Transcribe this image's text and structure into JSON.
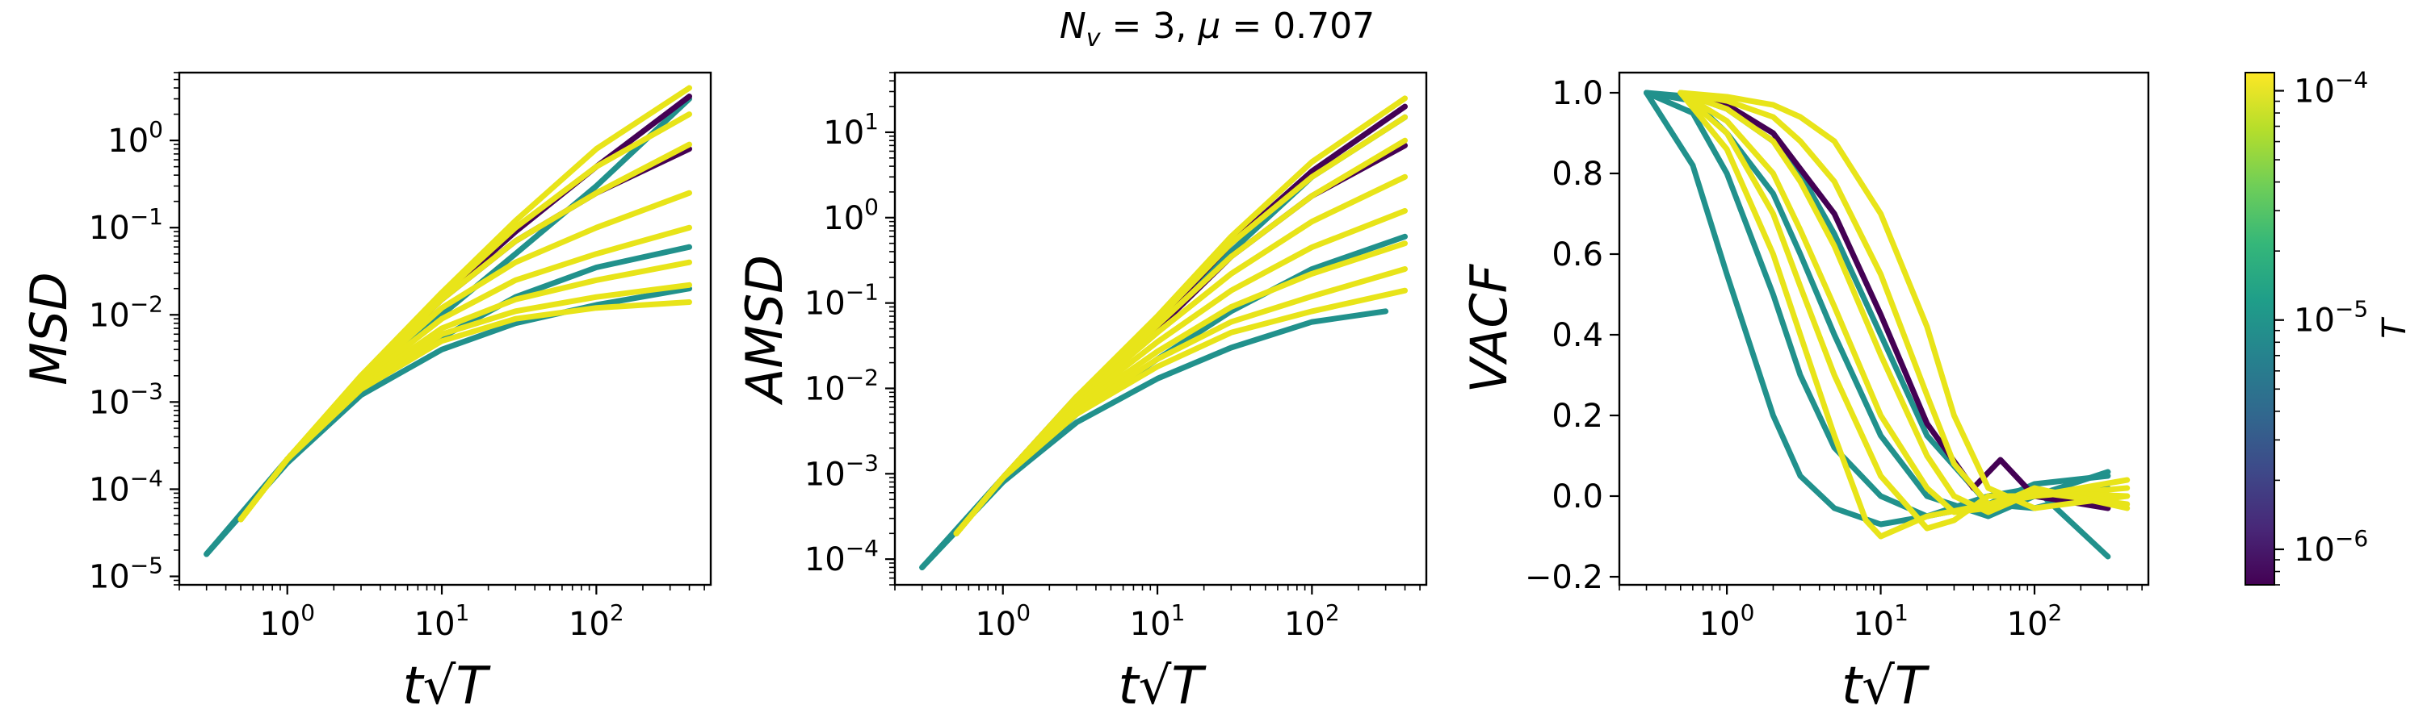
{
  "figure_title": "N_v = 3, μ = 0.707",
  "colorbar": {
    "label": "T",
    "colormap": "viridis",
    "range": [
      7e-07,
      0.00012
    ],
    "ticks": [
      {
        "value": 1e-06,
        "base": "10",
        "exp": "−6"
      },
      {
        "value": 1e-05,
        "base": "10",
        "exp": "−5"
      },
      {
        "value": 0.0001,
        "base": "10",
        "exp": "−4"
      }
    ],
    "colors": [
      "#440154",
      "#482878",
      "#3e4989",
      "#31688e",
      "#26828e",
      "#1f9e89",
      "#35b779",
      "#6ece58",
      "#b5de2b",
      "#fde725"
    ]
  },
  "chart_data": [
    {
      "type": "line",
      "name": "msd-panel",
      "ylabel": "MSD",
      "xlabel": "t√T",
      "xscale": "log",
      "yscale": "log",
      "xlim": [
        0.2,
        550
      ],
      "ylim": [
        8e-06,
        6
      ],
      "xticks": [
        {
          "value": 1,
          "base": "10",
          "exp": "0"
        },
        {
          "value": 10,
          "base": "10",
          "exp": "1"
        },
        {
          "value": 100,
          "base": "10",
          "exp": "2"
        }
      ],
      "yticks": [
        {
          "value": 1e-05,
          "base": "10",
          "exp": "−5"
        },
        {
          "value": 0.0001,
          "base": "10",
          "exp": "−4"
        },
        {
          "value": 0.001,
          "base": "10",
          "exp": "−3"
        },
        {
          "value": 0.01,
          "base": "10",
          "exp": "−2"
        },
        {
          "value": 0.1,
          "base": "10",
          "exp": "−1"
        },
        {
          "value": 1,
          "base": "10",
          "exp": "0"
        }
      ],
      "series": [
        {
          "T": 1e-05,
          "color": "#21918c",
          "x": [
            0.3,
            1,
            3,
            10,
            30,
            100,
            400
          ],
          "y": [
            1.8e-05,
            0.0002,
            0.0012,
            0.004,
            0.008,
            0.013,
            0.02
          ]
        },
        {
          "T": 1e-05,
          "color": "#21918c",
          "x": [
            0.3,
            1,
            3,
            10,
            30,
            100,
            400
          ],
          "y": [
            1.8e-05,
            0.00021,
            0.0014,
            0.0055,
            0.016,
            0.035,
            0.06
          ]
        },
        {
          "T": 1e-05,
          "color": "#21918c",
          "x": [
            0.3,
            1,
            3,
            10,
            30,
            100,
            400
          ],
          "y": [
            1.8e-05,
            0.00022,
            0.0017,
            0.01,
            0.05,
            0.3,
            3
          ]
        },
        {
          "T": 1e-06,
          "color": "#440154",
          "x": [
            0.5,
            1,
            3,
            10,
            30,
            100,
            400
          ],
          "y": [
            4.5e-05,
            0.00022,
            0.0019,
            0.016,
            0.09,
            0.5,
            3.2
          ]
        },
        {
          "T": 1e-06,
          "color": "#440154",
          "x": [
            0.5,
            1,
            3,
            10,
            30,
            100,
            400
          ],
          "y": [
            4.5e-05,
            0.00022,
            0.0019,
            0.015,
            0.07,
            0.25,
            0.8
          ]
        },
        {
          "T": 0.0001,
          "color": "#e8e419",
          "x": [
            0.5,
            1,
            3,
            10,
            30,
            100,
            400
          ],
          "y": [
            4.5e-05,
            0.00022,
            0.002,
            0.018,
            0.12,
            0.8,
            4
          ]
        },
        {
          "T": 0.0001,
          "color": "#e8e419",
          "x": [
            0.5,
            1,
            3,
            10,
            30,
            100,
            400
          ],
          "y": [
            4.5e-05,
            0.00022,
            0.002,
            0.017,
            0.1,
            0.5,
            2
          ]
        },
        {
          "T": 0.0001,
          "color": "#e8e419",
          "x": [
            0.5,
            1,
            3,
            10,
            30,
            100,
            400
          ],
          "y": [
            4.5e-05,
            0.00022,
            0.0019,
            0.015,
            0.07,
            0.25,
            0.9
          ]
        },
        {
          "T": 0.0001,
          "color": "#e8e419",
          "x": [
            0.5,
            1,
            3,
            10,
            30,
            100,
            400
          ],
          "y": [
            4.5e-05,
            0.00022,
            0.0018,
            0.012,
            0.04,
            0.1,
            0.25
          ]
        },
        {
          "T": 0.0001,
          "color": "#e8e419",
          "x": [
            0.5,
            1,
            3,
            10,
            30,
            100,
            400
          ],
          "y": [
            4.5e-05,
            0.00022,
            0.0017,
            0.009,
            0.025,
            0.05,
            0.1
          ]
        },
        {
          "T": 0.0001,
          "color": "#e8e419",
          "x": [
            0.5,
            1,
            3,
            10,
            30,
            100,
            400
          ],
          "y": [
            4.5e-05,
            0.00022,
            0.0016,
            0.007,
            0.015,
            0.025,
            0.04
          ]
        },
        {
          "T": 0.0001,
          "color": "#e8e419",
          "x": [
            0.5,
            1,
            3,
            10,
            30,
            100,
            400
          ],
          "y": [
            4.5e-05,
            0.00022,
            0.0015,
            0.006,
            0.011,
            0.016,
            0.022
          ]
        },
        {
          "T": 0.0001,
          "color": "#e8e419",
          "x": [
            0.5,
            1,
            3,
            10,
            30,
            100,
            400
          ],
          "y": [
            4.5e-05,
            0.00022,
            0.0014,
            0.005,
            0.009,
            0.012,
            0.014
          ]
        }
      ]
    },
    {
      "type": "line",
      "name": "amsd-panel",
      "ylabel": "AMSD",
      "xlabel": "t√T",
      "xscale": "log",
      "yscale": "log",
      "xlim": [
        0.2,
        550
      ],
      "ylim": [
        5e-05,
        50
      ],
      "xticks": [
        {
          "value": 1,
          "base": "10",
          "exp": "0"
        },
        {
          "value": 10,
          "base": "10",
          "exp": "1"
        },
        {
          "value": 100,
          "base": "10",
          "exp": "2"
        }
      ],
      "yticks": [
        {
          "value": 0.0001,
          "base": "10",
          "exp": "−4"
        },
        {
          "value": 0.001,
          "base": "10",
          "exp": "−3"
        },
        {
          "value": 0.01,
          "base": "10",
          "exp": "−2"
        },
        {
          "value": 0.1,
          "base": "10",
          "exp": "−1"
        },
        {
          "value": 1,
          "base": "10",
          "exp": "0"
        },
        {
          "value": 10,
          "base": "10",
          "exp": "1"
        }
      ],
      "series": [
        {
          "T": 1e-05,
          "color": "#21918c",
          "x": [
            0.3,
            1,
            3,
            10,
            30,
            100,
            300
          ],
          "y": [
            8e-05,
            0.0008,
            0.004,
            0.013,
            0.03,
            0.06,
            0.08
          ]
        },
        {
          "T": 1e-05,
          "color": "#21918c",
          "x": [
            0.3,
            1,
            3,
            10,
            30,
            100,
            400
          ],
          "y": [
            8e-05,
            0.0008,
            0.005,
            0.022,
            0.08,
            0.25,
            0.6
          ]
        },
        {
          "T": 1e-05,
          "color": "#21918c",
          "x": [
            0.3,
            1,
            3,
            10,
            30,
            100,
            400
          ],
          "y": [
            8e-05,
            0.0009,
            0.007,
            0.05,
            0.4,
            3,
            15
          ]
        },
        {
          "T": 1e-06,
          "color": "#440154",
          "x": [
            0.5,
            1,
            3,
            10,
            30,
            100,
            400
          ],
          "y": [
            0.0002,
            0.0009,
            0.008,
            0.06,
            0.5,
            3.5,
            20
          ]
        },
        {
          "T": 1e-06,
          "color": "#440154",
          "x": [
            0.5,
            1,
            3,
            10,
            30,
            100,
            400
          ],
          "y": [
            0.0002,
            0.0009,
            0.0075,
            0.05,
            0.35,
            1.8,
            7
          ]
        },
        {
          "T": 0.0001,
          "color": "#e8e419",
          "x": [
            0.5,
            1,
            3,
            10,
            30,
            100,
            400
          ],
          "y": [
            0.0002,
            0.0009,
            0.008,
            0.07,
            0.6,
            4.5,
            25
          ]
        },
        {
          "T": 0.0001,
          "color": "#e8e419",
          "x": [
            0.5,
            1,
            3,
            10,
            30,
            100,
            400
          ],
          "y": [
            0.0002,
            0.0009,
            0.008,
            0.065,
            0.5,
            3,
            15
          ]
        },
        {
          "T": 0.0001,
          "color": "#e8e419",
          "x": [
            0.5,
            1,
            3,
            10,
            30,
            100,
            400
          ],
          "y": [
            0.0002,
            0.0009,
            0.0075,
            0.055,
            0.35,
            1.8,
            8
          ]
        },
        {
          "T": 0.0001,
          "color": "#e8e419",
          "x": [
            0.5,
            1,
            3,
            10,
            30,
            100,
            400
          ],
          "y": [
            0.0002,
            0.0009,
            0.007,
            0.045,
            0.22,
            0.9,
            3
          ]
        },
        {
          "T": 0.0001,
          "color": "#e8e419",
          "x": [
            0.5,
            1,
            3,
            10,
            30,
            100,
            400
          ],
          "y": [
            0.0002,
            0.0009,
            0.0065,
            0.035,
            0.14,
            0.45,
            1.2
          ]
        },
        {
          "T": 0.0001,
          "color": "#e8e419",
          "x": [
            0.5,
            1,
            3,
            10,
            30,
            100,
            400
          ],
          "y": [
            0.0002,
            0.0009,
            0.006,
            0.027,
            0.09,
            0.22,
            0.5
          ]
        },
        {
          "T": 0.0001,
          "color": "#e8e419",
          "x": [
            0.5,
            1,
            3,
            10,
            30,
            100,
            400
          ],
          "y": [
            0.0002,
            0.0009,
            0.0055,
            0.022,
            0.06,
            0.12,
            0.25
          ]
        },
        {
          "T": 0.0001,
          "color": "#e8e419",
          "x": [
            0.5,
            1,
            3,
            10,
            30,
            100,
            400
          ],
          "y": [
            0.0002,
            0.0009,
            0.005,
            0.018,
            0.045,
            0.08,
            0.14
          ]
        }
      ]
    },
    {
      "type": "line",
      "name": "vacf-panel",
      "ylabel": "VACF",
      "xlabel": "t√T",
      "xscale": "log",
      "yscale": "linear",
      "xlim": [
        0.2,
        550
      ],
      "ylim": [
        -0.22,
        1.05
      ],
      "xticks": [
        {
          "value": 1,
          "base": "10",
          "exp": "0"
        },
        {
          "value": 10,
          "base": "10",
          "exp": "1"
        },
        {
          "value": 100,
          "base": "10",
          "exp": "2"
        }
      ],
      "yticks": [
        {
          "value": -0.2,
          "label": "−0.2"
        },
        {
          "value": 0.0,
          "label": "0.0"
        },
        {
          "value": 0.2,
          "label": "0.2"
        },
        {
          "value": 0.4,
          "label": "0.4"
        },
        {
          "value": 0.6,
          "label": "0.6"
        },
        {
          "value": 0.8,
          "label": "0.8"
        },
        {
          "value": 1.0,
          "label": "1.0"
        }
      ],
      "series": [
        {
          "T": 1e-05,
          "color": "#21918c",
          "x": [
            0.3,
            0.6,
            1,
            2,
            3,
            5,
            10,
            20,
            50,
            100,
            300
          ],
          "y": [
            1.0,
            0.82,
            0.55,
            0.2,
            0.05,
            -0.03,
            -0.07,
            -0.05,
            0.0,
            0.02,
            -0.15
          ]
        },
        {
          "T": 1e-05,
          "color": "#21918c",
          "x": [
            0.3,
            0.6,
            1,
            2,
            3,
            5,
            10,
            20,
            50,
            100,
            300
          ],
          "y": [
            1.0,
            0.95,
            0.8,
            0.5,
            0.3,
            0.12,
            0.0,
            -0.05,
            -0.02,
            0.03,
            0.05
          ]
        },
        {
          "T": 1e-05,
          "color": "#21918c",
          "x": [
            0.3,
            0.6,
            1,
            2,
            3,
            5,
            10,
            20,
            50,
            100,
            300
          ],
          "y": [
            1.0,
            0.98,
            0.9,
            0.75,
            0.6,
            0.4,
            0.15,
            0.0,
            -0.05,
            0.0,
            0.06
          ]
        },
        {
          "T": 1e-05,
          "color": "#21918c",
          "x": [
            0.3,
            0.6,
            1,
            2,
            3,
            5,
            10,
            20,
            50,
            100,
            300
          ],
          "y": [
            1.0,
            0.99,
            0.96,
            0.88,
            0.8,
            0.65,
            0.4,
            0.15,
            -0.02,
            -0.03,
            0.02
          ]
        },
        {
          "T": 1e-06,
          "color": "#440154",
          "x": [
            0.5,
            1,
            2,
            5,
            10,
            20,
            40,
            60,
            100,
            300
          ],
          "y": [
            1.0,
            0.97,
            0.9,
            0.7,
            0.45,
            0.18,
            0.02,
            0.09,
            0.0,
            -0.03
          ]
        },
        {
          "T": 0.0001,
          "color": "#e8e419",
          "x": [
            0.5,
            1,
            2,
            3,
            5,
            10,
            20,
            30,
            50,
            100,
            400
          ],
          "y": [
            1.0,
            0.98,
            0.94,
            0.88,
            0.78,
            0.55,
            0.25,
            0.08,
            -0.02,
            0.0,
            0.02
          ]
        },
        {
          "T": 0.0001,
          "color": "#e8e419",
          "x": [
            0.5,
            1,
            2,
            3,
            5,
            10,
            20,
            30,
            50,
            100,
            400
          ],
          "y": [
            1.0,
            0.96,
            0.88,
            0.78,
            0.62,
            0.35,
            0.1,
            0.0,
            -0.04,
            0.01,
            0.0
          ]
        },
        {
          "T": 0.0001,
          "color": "#e8e419",
          "x": [
            0.5,
            1,
            2,
            3,
            5,
            10,
            20,
            30,
            50,
            100,
            400
          ],
          "y": [
            1.0,
            0.93,
            0.8,
            0.66,
            0.47,
            0.2,
            0.02,
            -0.04,
            -0.03,
            0.02,
            -0.03
          ]
        },
        {
          "T": 0.0001,
          "color": "#e8e419",
          "x": [
            0.5,
            1,
            2,
            3,
            5,
            10,
            20,
            30,
            50,
            100,
            400
          ],
          "y": [
            1.0,
            0.9,
            0.7,
            0.52,
            0.3,
            0.05,
            -0.08,
            -0.06,
            0.0,
            0.0,
            0.04
          ]
        },
        {
          "T": 0.0001,
          "color": "#e8e419",
          "x": [
            0.5,
            1,
            2,
            3,
            5,
            8,
            10,
            20,
            50,
            100,
            400
          ],
          "y": [
            1.0,
            0.86,
            0.6,
            0.4,
            0.15,
            -0.06,
            -0.1,
            -0.05,
            -0.02,
            0.01,
            -0.02
          ]
        },
        {
          "T": 0.0001,
          "color": "#e8e419",
          "x": [
            0.5,
            1,
            2,
            3,
            5,
            10,
            20,
            30,
            50,
            100,
            400
          ],
          "y": [
            1.0,
            0.99,
            0.97,
            0.94,
            0.88,
            0.7,
            0.42,
            0.2,
            0.02,
            -0.03,
            0.0
          ]
        }
      ]
    }
  ]
}
